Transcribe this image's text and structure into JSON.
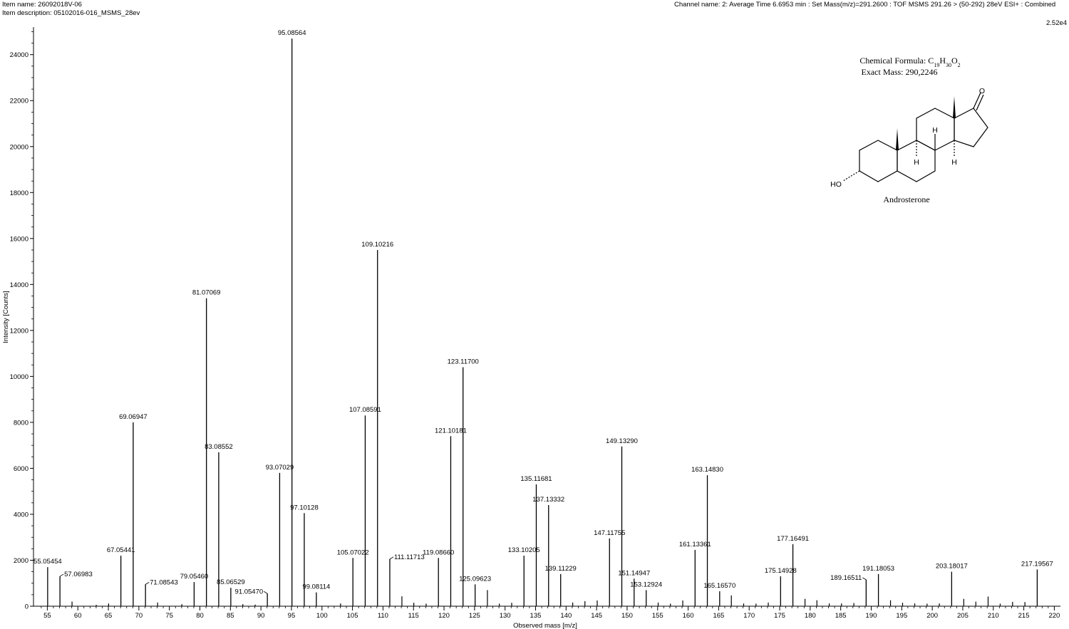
{
  "header": {
    "item_name": "Item name: 26092018V-06",
    "item_description": "Item description: 05102016-016_MSMS_28ev",
    "channel_name": "Channel name: 2: Average Time 6.6953 min : Set Mass(m/z)=291.2600 : TOF MSMS 291.26 > (50-292) 28eV ESI+ : Combined",
    "scale_label": "2.52e4"
  },
  "molecule": {
    "formula_prefix": "Chemical Formula: C",
    "formula_c_sub": "19",
    "formula_h": "H",
    "formula_h_sub": "30",
    "formula_o": "O",
    "formula_o_sub": "2",
    "exact_mass": "Exact Mass: 290,2246",
    "name": "Androsterone",
    "atom_labels": {
      "ho": "HO",
      "o": "O",
      "h": "H"
    }
  },
  "chart_data": {
    "type": "bar",
    "xlabel": "Observed mass [m/z]",
    "ylabel": "Intensity [Counts]",
    "xlim": [
      54,
      220
    ],
    "ylim": [
      0,
      25200
    ],
    "x_ticks": [
      55,
      60,
      65,
      70,
      75,
      80,
      85,
      90,
      95,
      100,
      105,
      110,
      115,
      120,
      125,
      130,
      135,
      140,
      145,
      150,
      155,
      160,
      165,
      170,
      175,
      180,
      185,
      190,
      195,
      200,
      205,
      210,
      215,
      220
    ],
    "y_ticks": [
      0,
      2000,
      4000,
      6000,
      8000,
      10000,
      12000,
      14000,
      16000,
      18000,
      20000,
      22000,
      24000
    ],
    "peaks": [
      {
        "mz": 55.05454,
        "intensity": 1700,
        "label": "55.05454"
      },
      {
        "mz": 57.06983,
        "intensity": 1300,
        "label": "57.06983"
      },
      {
        "mz": 67.05441,
        "intensity": 2200,
        "label": "67.05441"
      },
      {
        "mz": 69.06947,
        "intensity": 8000,
        "label": "69.06947"
      },
      {
        "mz": 71.08543,
        "intensity": 950,
        "label": "71.08543"
      },
      {
        "mz": 79.0546,
        "intensity": 1050,
        "label": "79.05460"
      },
      {
        "mz": 81.07069,
        "intensity": 13400,
        "label": "81.07069"
      },
      {
        "mz": 83.08552,
        "intensity": 6700,
        "label": "83.08552"
      },
      {
        "mz": 85.06529,
        "intensity": 800,
        "label": "85.06529"
      },
      {
        "mz": 91.0547,
        "intensity": 550,
        "label": "91.05470"
      },
      {
        "mz": 93.07029,
        "intensity": 5800,
        "label": "93.07029"
      },
      {
        "mz": 95.08564,
        "intensity": 24700,
        "label": "95.08564"
      },
      {
        "mz": 97.10128,
        "intensity": 4050,
        "label": "97.10128"
      },
      {
        "mz": 99.08114,
        "intensity": 600,
        "label": "99.08114"
      },
      {
        "mz": 105.07022,
        "intensity": 2100,
        "label": "105.07022"
      },
      {
        "mz": 107.08591,
        "intensity": 8300,
        "label": "107.08591"
      },
      {
        "mz": 109.10216,
        "intensity": 15500,
        "label": "109.10216"
      },
      {
        "mz": 111.11713,
        "intensity": 2050,
        "label": "111.11713"
      },
      {
        "mz": 119.0866,
        "intensity": 2100,
        "label": "119.08660"
      },
      {
        "mz": 121.10181,
        "intensity": 7400,
        "label": "121.10181"
      },
      {
        "mz": 123.117,
        "intensity": 10400,
        "label": "123.11700"
      },
      {
        "mz": 125.09623,
        "intensity": 950,
        "label": "125.09623"
      },
      {
        "mz": 133.10205,
        "intensity": 2200,
        "label": "133.10205"
      },
      {
        "mz": 135.11681,
        "intensity": 5300,
        "label": "135.11681"
      },
      {
        "mz": 137.13332,
        "intensity": 4400,
        "label": "137.13332"
      },
      {
        "mz": 139.11229,
        "intensity": 1400,
        "label": "139.11229"
      },
      {
        "mz": 147.11755,
        "intensity": 2950,
        "label": "147.11755"
      },
      {
        "mz": 149.1329,
        "intensity": 6950,
        "label": "149.13290"
      },
      {
        "mz": 151.14947,
        "intensity": 1200,
        "label": "151.14947"
      },
      {
        "mz": 153.12924,
        "intensity": 700,
        "label": "153.12924"
      },
      {
        "mz": 161.13361,
        "intensity": 2450,
        "label": "161.13361"
      },
      {
        "mz": 163.1483,
        "intensity": 5700,
        "label": "163.14830"
      },
      {
        "mz": 165.1657,
        "intensity": 650,
        "label": "165.16570"
      },
      {
        "mz": 175.14928,
        "intensity": 1300,
        "label": "175.14928"
      },
      {
        "mz": 177.16491,
        "intensity": 2700,
        "label": "177.16491"
      },
      {
        "mz": 189.16511,
        "intensity": 1150,
        "label": "189.16511"
      },
      {
        "mz": 191.18053,
        "intensity": 1400,
        "label": "191.18053"
      },
      {
        "mz": 203.18017,
        "intensity": 1500,
        "label": "203.18017"
      },
      {
        "mz": 217.19567,
        "intensity": 1600,
        "label": "217.19567"
      }
    ],
    "minor_peaks": [
      {
        "mz": 59.05,
        "intensity": 200
      },
      {
        "mz": 63.02,
        "intensity": 60
      },
      {
        "mz": 65.04,
        "intensity": 120
      },
      {
        "mz": 73.07,
        "intensity": 160
      },
      {
        "mz": 77.04,
        "intensity": 90
      },
      {
        "mz": 87.04,
        "intensity": 90
      },
      {
        "mz": 89.06,
        "intensity": 70
      },
      {
        "mz": 103.05,
        "intensity": 120
      },
      {
        "mz": 113.1,
        "intensity": 430
      },
      {
        "mz": 115.05,
        "intensity": 150
      },
      {
        "mz": 117.07,
        "intensity": 110
      },
      {
        "mz": 127.11,
        "intensity": 700
      },
      {
        "mz": 129.07,
        "intensity": 110
      },
      {
        "mz": 131.09,
        "intensity": 150
      },
      {
        "mz": 141.09,
        "intensity": 160
      },
      {
        "mz": 143.09,
        "intensity": 220
      },
      {
        "mz": 145.1,
        "intensity": 250
      },
      {
        "mz": 155.09,
        "intensity": 160
      },
      {
        "mz": 157.1,
        "intensity": 110
      },
      {
        "mz": 159.12,
        "intensity": 250
      },
      {
        "mz": 167.08,
        "intensity": 470
      },
      {
        "mz": 169.1,
        "intensity": 120
      },
      {
        "mz": 171.12,
        "intensity": 110
      },
      {
        "mz": 173.13,
        "intensity": 160
      },
      {
        "mz": 179.15,
        "intensity": 320
      },
      {
        "mz": 181.1,
        "intensity": 260
      },
      {
        "mz": 183.12,
        "intensity": 120
      },
      {
        "mz": 185.13,
        "intensity": 120
      },
      {
        "mz": 187.15,
        "intensity": 140
      },
      {
        "mz": 193.16,
        "intensity": 260
      },
      {
        "mz": 195.14,
        "intensity": 150
      },
      {
        "mz": 197.13,
        "intensity": 120
      },
      {
        "mz": 199.15,
        "intensity": 110
      },
      {
        "mz": 201.16,
        "intensity": 120
      },
      {
        "mz": 205.16,
        "intensity": 320
      },
      {
        "mz": 207.14,
        "intensity": 200
      },
      {
        "mz": 209.15,
        "intensity": 420
      },
      {
        "mz": 211.13,
        "intensity": 110
      },
      {
        "mz": 213.16,
        "intensity": 190
      },
      {
        "mz": 215.18,
        "intensity": 180
      }
    ]
  }
}
